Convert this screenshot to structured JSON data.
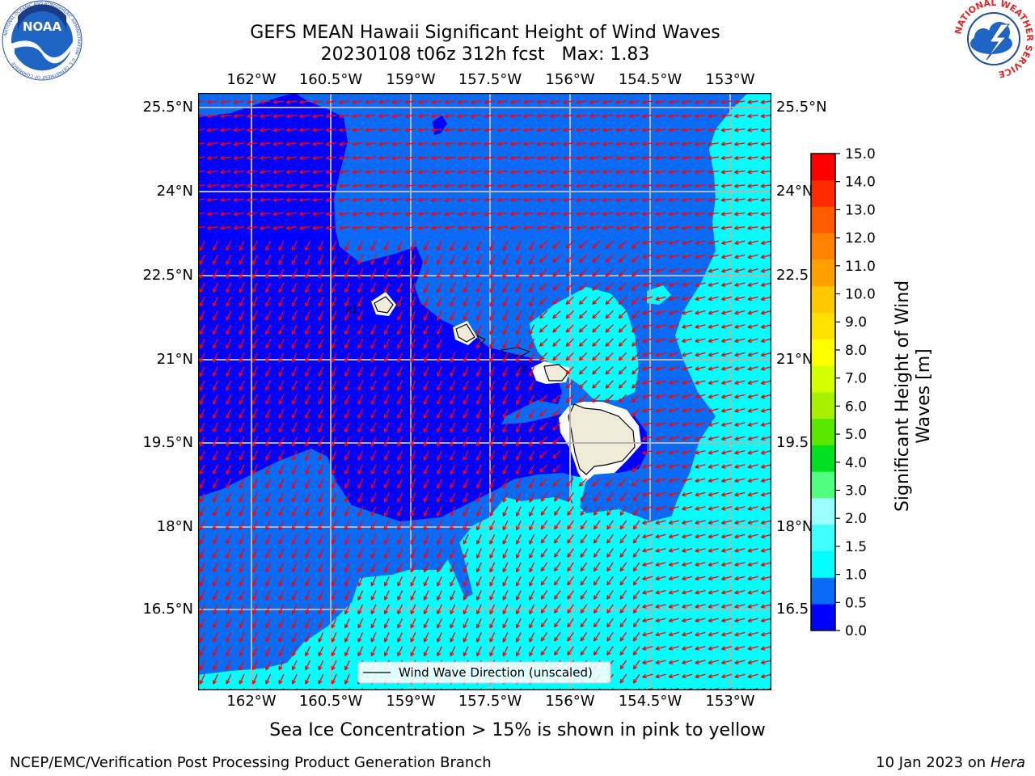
{
  "title": {
    "line1": "GEFS MEAN Hawaii Significant Height of Wind Waves",
    "line2": "20230108 t06z 312h fcst   Max: 1.83"
  },
  "logos": {
    "noaa_text": "NOAA",
    "noaa_ring": "NATIONAL OCEANIC AND ATMOSPHERIC ADMINISTRATION · U.S. DEPARTMENT OF COMMERCE",
    "nws_ring": "NATIONAL WEATHER SERVICE"
  },
  "map": {
    "lon_labels": [
      "162°W",
      "160.5°W",
      "159°W",
      "157.5°W",
      "156°W",
      "154.5°W",
      "153°W"
    ],
    "lat_labels_left": [
      "25.5°N",
      "24°N",
      "22.5°N",
      "21°N",
      "19.5°N",
      "18°N",
      "16.5°N"
    ],
    "lat_labels_right": [
      "25.5°N",
      "24°N",
      "22.5",
      "21°N",
      "19.5",
      "18°N",
      "16.5"
    ],
    "legend_label": "Wind Wave Direction (unscaled)",
    "arrow_color": "#ff0000",
    "land_color": "#efebd8"
  },
  "colorbar": {
    "ticks": [
      "0.0",
      "0.5",
      "1.0",
      "1.5",
      "2.0",
      "3.0",
      "4.0",
      "5.0",
      "6.0",
      "7.0",
      "8.0",
      "9.0",
      "10.0",
      "11.0",
      "12.0",
      "13.0",
      "14.0",
      "15.0"
    ],
    "colors": [
      "#0000ff",
      "#0a6cf6",
      "#00ffff",
      "#40ffff",
      "#9bffff",
      "#50ff80",
      "#00e020",
      "#5ae800",
      "#a8f000",
      "#d4ff00",
      "#ffff00",
      "#ffe200",
      "#ffc800",
      "#ffa000",
      "#ff8200",
      "#ff5a00",
      "#ff2a00",
      "#ff0000"
    ],
    "label_line1": "Significant Height of Wind",
    "label_line2": "Waves [m]"
  },
  "footer": {
    "note": "Sea Ice Concentration > 15% is shown in pink to yellow",
    "left": "NCEP/EMC/Verification Post Processing Product Generation Branch",
    "right_date": "10 Jan 2023 on",
    "right_machine": "Hera"
  }
}
